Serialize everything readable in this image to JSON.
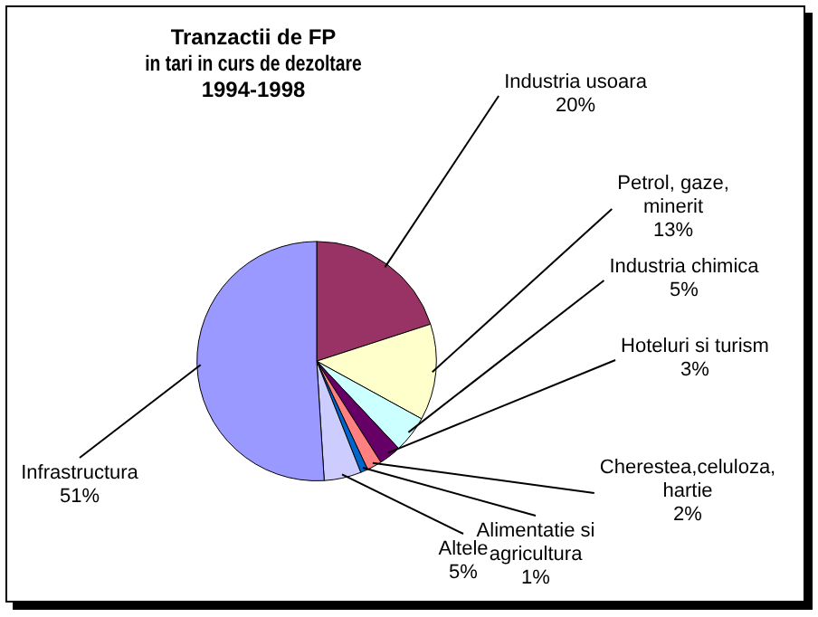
{
  "chart_data": {
    "type": "pie",
    "title": "Tranzactii de FP\nin tari in curs de dezoltare\n1994-1998",
    "categories": [
      "Industria usoara",
      "Petrol, gaze, minerit",
      "Industria chimica",
      "Hoteluri si turism",
      "Cherestea,celuloza, hartie",
      "Alimentatie si agricultura",
      "Altele",
      "Infrastructura"
    ],
    "values": [
      20,
      13,
      5,
      3,
      2,
      1,
      5,
      51
    ],
    "value_labels": [
      "20%",
      "13%",
      "5%",
      "3%",
      "2%",
      "1%",
      "5%",
      "51%"
    ],
    "colors": [
      "#993366",
      "#ffffcc",
      "#ccffff",
      "#660066",
      "#ff8080",
      "#0066cc",
      "#ccccff",
      "#9999ff"
    ],
    "legend": false
  }
}
